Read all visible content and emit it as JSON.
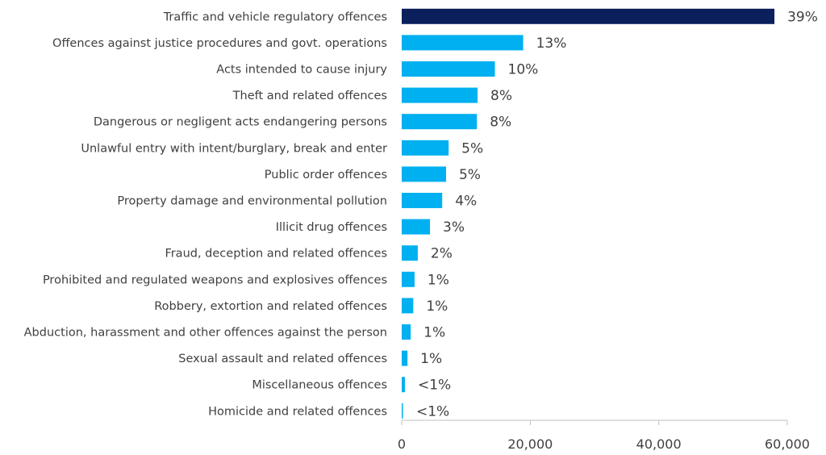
{
  "chart_data": {
    "type": "bar",
    "orientation": "horizontal",
    "categories": [
      "Traffic and vehicle regulatory offences",
      "Offences against justice procedures and govt. operations",
      "Acts intended to cause injury",
      "Theft and related offences",
      "Dangerous or negligent acts endangering persons",
      "Unlawful entry with intent/burglary, break and enter",
      "Public order offences",
      "Property damage and environmental pollution",
      "Illicit drug offences",
      "Fraud, deception and related offences",
      "Prohibited and regulated weapons and explosives offences",
      "Robbery, extortion and related offences",
      "Abduction, harassment and other offences against the person",
      "Sexual assault and related offences",
      "Miscellaneous offences",
      "Homicide and related offences"
    ],
    "values": [
      58000,
      18900,
      14500,
      11800,
      11700,
      7300,
      6900,
      6300,
      4400,
      2500,
      2000,
      1800,
      1400,
      900,
      500,
      100
    ],
    "data_labels": [
      "39%",
      "13%",
      "10%",
      "8%",
      "8%",
      "5%",
      "5%",
      "4%",
      "3%",
      "2%",
      "1%",
      "1%",
      "1%",
      "1%",
      "<1%",
      "<1%"
    ],
    "x_ticks": [
      0,
      20000,
      40000,
      60000
    ],
    "x_tick_labels": [
      "0",
      "20,000",
      "40,000",
      "60,000"
    ],
    "xlim": [
      0,
      60000
    ],
    "title": "",
    "xlabel": "",
    "ylabel": "",
    "grid": false,
    "colors": {
      "highlight": "#0b1f5c",
      "default": "#00b0f0",
      "axis": "#bfbfbf",
      "text": "#404040"
    }
  }
}
